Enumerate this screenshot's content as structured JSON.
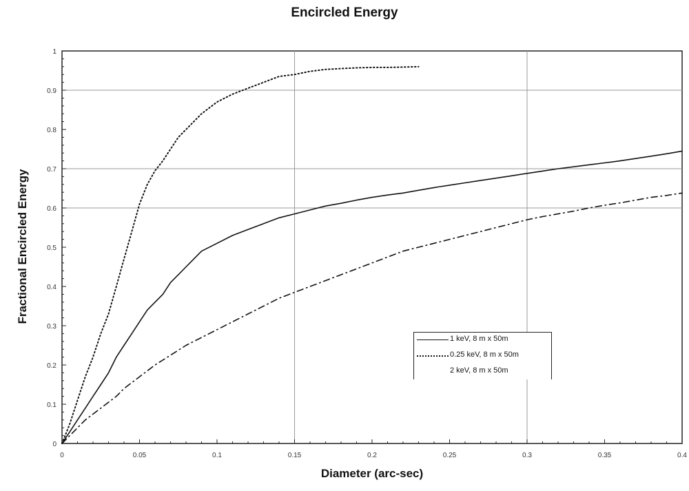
{
  "chart_data": {
    "type": "line",
    "title": "Encircled Energy",
    "xlabel": "Diameter (arc-sec)",
    "ylabel": "Fractional Encircled Energy",
    "xlim": [
      0,
      0.4
    ],
    "ylim": [
      0,
      1
    ],
    "x_ticks": [
      "0",
      "0.05",
      "0.1",
      "0.15",
      "0.2",
      "0.25",
      "0.3",
      "0.35",
      "0.4"
    ],
    "y_ticks": [
      "0",
      "0.1",
      "0.2",
      "0.3",
      "0.4",
      "0.5",
      "0.6",
      "0.7",
      "0.8",
      "0.9",
      "1"
    ],
    "grid": "major lines at x = 0.15, 0.3 and y = 0.6, 0.7, 0.9",
    "legend_position": "lower-right",
    "series": [
      {
        "name": "1 keV, 8 m x 50m",
        "style": "solid",
        "x": [
          0,
          0.005,
          0.01,
          0.015,
          0.02,
          0.025,
          0.03,
          0.035,
          0.04,
          0.045,
          0.05,
          0.055,
          0.06,
          0.065,
          0.07,
          0.075,
          0.08,
          0.09,
          0.1,
          0.11,
          0.12,
          0.13,
          0.14,
          0.15,
          0.16,
          0.17,
          0.18,
          0.19,
          0.2,
          0.21,
          0.22,
          0.23,
          0.24,
          0.25,
          0.26,
          0.27,
          0.28,
          0.29,
          0.3,
          0.31,
          0.32,
          0.33,
          0.34,
          0.35,
          0.36,
          0.37,
          0.38,
          0.39,
          0.4
        ],
        "y": [
          0,
          0.03,
          0.06,
          0.09,
          0.12,
          0.15,
          0.18,
          0.22,
          0.25,
          0.28,
          0.31,
          0.34,
          0.36,
          0.38,
          0.41,
          0.43,
          0.45,
          0.49,
          0.51,
          0.53,
          0.545,
          0.56,
          0.575,
          0.585,
          0.595,
          0.605,
          0.612,
          0.62,
          0.627,
          0.633,
          0.638,
          0.645,
          0.652,
          0.658,
          0.664,
          0.67,
          0.676,
          0.682,
          0.688,
          0.694,
          0.7,
          0.705,
          0.71,
          0.715,
          0.72,
          0.726,
          0.732,
          0.738,
          0.745
        ]
      },
      {
        "name": "0.25 keV, 8 m x 50m",
        "style": "dotted",
        "x": [
          0,
          0.005,
          0.01,
          0.015,
          0.02,
          0.025,
          0.03,
          0.035,
          0.04,
          0.045,
          0.05,
          0.055,
          0.06,
          0.065,
          0.07,
          0.075,
          0.08,
          0.09,
          0.1,
          0.11,
          0.12,
          0.13,
          0.14,
          0.15,
          0.16,
          0.17,
          0.18,
          0.19,
          0.2,
          0.21,
          0.22,
          0.23
        ],
        "y": [
          0,
          0.05,
          0.11,
          0.17,
          0.22,
          0.28,
          0.33,
          0.4,
          0.47,
          0.54,
          0.61,
          0.66,
          0.695,
          0.72,
          0.75,
          0.78,
          0.8,
          0.84,
          0.87,
          0.89,
          0.905,
          0.92,
          0.935,
          0.94,
          0.948,
          0.953,
          0.955,
          0.957,
          0.958,
          0.958,
          0.959,
          0.96
        ]
      },
      {
        "name": "2 keV, 8 m x 50m",
        "style": "dash-dot",
        "x": [
          0,
          0.005,
          0.01,
          0.015,
          0.02,
          0.025,
          0.03,
          0.035,
          0.04,
          0.045,
          0.05,
          0.06,
          0.07,
          0.08,
          0.09,
          0.1,
          0.11,
          0.12,
          0.13,
          0.14,
          0.15,
          0.16,
          0.17,
          0.18,
          0.19,
          0.2,
          0.21,
          0.22,
          0.23,
          0.24,
          0.25,
          0.26,
          0.27,
          0.28,
          0.29,
          0.3,
          0.31,
          0.32,
          0.33,
          0.34,
          0.35,
          0.36,
          0.37,
          0.38,
          0.39,
          0.4
        ],
        "y": [
          0,
          0.02,
          0.04,
          0.06,
          0.075,
          0.09,
          0.105,
          0.12,
          0.14,
          0.155,
          0.17,
          0.2,
          0.225,
          0.25,
          0.27,
          0.29,
          0.31,
          0.33,
          0.35,
          0.37,
          0.385,
          0.4,
          0.415,
          0.43,
          0.445,
          0.46,
          0.475,
          0.49,
          0.5,
          0.51,
          0.52,
          0.53,
          0.54,
          0.55,
          0.56,
          0.57,
          0.578,
          0.585,
          0.592,
          0.6,
          0.607,
          0.613,
          0.62,
          0.627,
          0.632,
          0.638
        ]
      }
    ]
  }
}
